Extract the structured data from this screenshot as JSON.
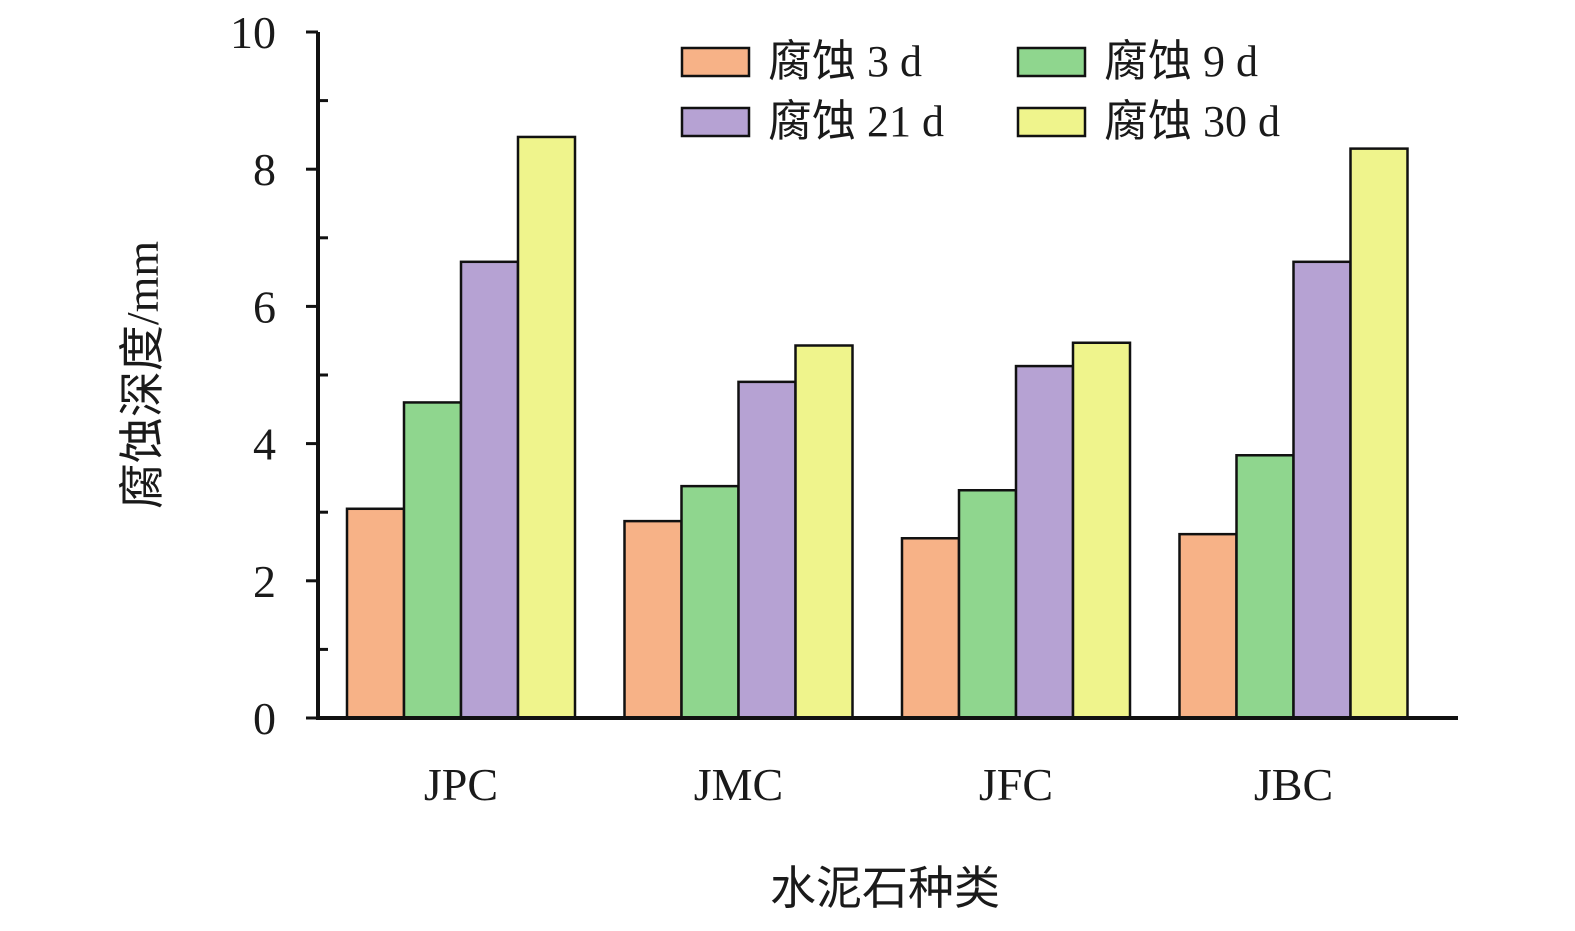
{
  "chart_data": {
    "type": "bar",
    "categories": [
      "JPC",
      "JMC",
      "JFC",
      "JBC"
    ],
    "series": [
      {
        "name": "腐蚀 3 d",
        "color": "#f7b287",
        "values": [
          3.05,
          2.87,
          2.62,
          2.68
        ]
      },
      {
        "name": "腐蚀 9 d",
        "color": "#8fd68e",
        "values": [
          4.6,
          3.38,
          3.32,
          3.83
        ]
      },
      {
        "name": "腐蚀 21 d",
        "color": "#b6a2d3",
        "values": [
          6.65,
          4.9,
          5.13,
          6.65
        ]
      },
      {
        "name": "腐蚀 30 d",
        "color": "#eff48c",
        "values": [
          8.47,
          5.43,
          5.47,
          8.3
        ]
      }
    ],
    "xlabel": "水泥石种类",
    "ylabel": "腐蚀深度/mm",
    "ylim": [
      0,
      10
    ],
    "yticks": [
      "0",
      "2",
      "4",
      "6",
      "8",
      "10"
    ],
    "grid": false,
    "legend_position": "top-right"
  }
}
